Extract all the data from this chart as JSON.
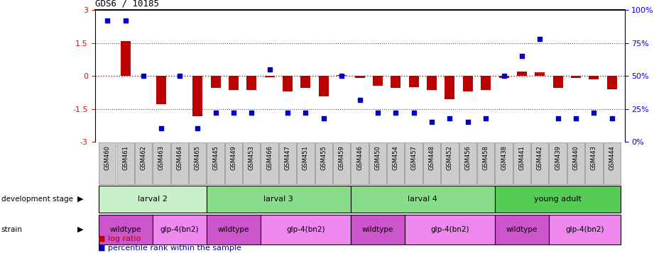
{
  "title": "GDS6 / 10185",
  "samples": [
    "GSM460",
    "GSM461",
    "GSM462",
    "GSM463",
    "GSM464",
    "GSM465",
    "GSM445",
    "GSM449",
    "GSM453",
    "GSM466",
    "GSM447",
    "GSM451",
    "GSM455",
    "GSM459",
    "GSM446",
    "GSM450",
    "GSM454",
    "GSM457",
    "GSM448",
    "GSM452",
    "GSM456",
    "GSM458",
    "GSM438",
    "GSM441",
    "GSM442",
    "GSM439",
    "GSM440",
    "GSM443",
    "GSM444"
  ],
  "log_ratio": [
    0.0,
    1.6,
    0.0,
    -1.3,
    0.0,
    -1.85,
    -0.55,
    -0.65,
    -0.65,
    -0.05,
    -0.7,
    -0.55,
    -0.95,
    0.05,
    -0.1,
    -0.45,
    -0.55,
    -0.5,
    -0.65,
    -1.05,
    -0.7,
    -0.65,
    -0.1,
    0.2,
    0.15,
    -0.55,
    -0.1,
    -0.15,
    -0.6
  ],
  "percentile": [
    92,
    92,
    50,
    10,
    50,
    10,
    22,
    22,
    22,
    55,
    22,
    22,
    18,
    50,
    32,
    22,
    22,
    22,
    15,
    18,
    15,
    18,
    50,
    65,
    78,
    18,
    18,
    22,
    18
  ],
  "ylim_left": [
    -3,
    3
  ],
  "ylim_right": [
    0,
    100
  ],
  "yticks_left": [
    -3,
    -1.5,
    0,
    1.5,
    3
  ],
  "yticks_right": [
    0,
    25,
    50,
    75,
    100
  ],
  "dev_stages": [
    {
      "label": "larval 2",
      "start": 0,
      "end": 6,
      "color": "#c8f0c8"
    },
    {
      "label": "larval 3",
      "start": 6,
      "end": 14,
      "color": "#88dd88"
    },
    {
      "label": "larval 4",
      "start": 14,
      "end": 22,
      "color": "#88dd88"
    },
    {
      "label": "young adult",
      "start": 22,
      "end": 29,
      "color": "#55cc55"
    }
  ],
  "strains": [
    {
      "label": "wildtype",
      "start": 0,
      "end": 3,
      "color": "#cc55cc"
    },
    {
      "label": "glp-4(bn2)",
      "start": 3,
      "end": 6,
      "color": "#ee88ee"
    },
    {
      "label": "wildtype",
      "start": 6,
      "end": 9,
      "color": "#cc55cc"
    },
    {
      "label": "glp-4(bn2)",
      "start": 9,
      "end": 14,
      "color": "#ee88ee"
    },
    {
      "label": "wildtype",
      "start": 14,
      "end": 17,
      "color": "#cc55cc"
    },
    {
      "label": "glp-4(bn2)",
      "start": 17,
      "end": 22,
      "color": "#ee88ee"
    },
    {
      "label": "wildtype",
      "start": 22,
      "end": 25,
      "color": "#cc55cc"
    },
    {
      "label": "glp-4(bn2)",
      "start": 25,
      "end": 29,
      "color": "#ee88ee"
    }
  ],
  "bar_color": "#bb0000",
  "dot_color": "#0000bb",
  "hline_color": "#cc0000",
  "dotted_color": "#555555",
  "background": "#ffffff",
  "tick_box_color": "#cccccc"
}
